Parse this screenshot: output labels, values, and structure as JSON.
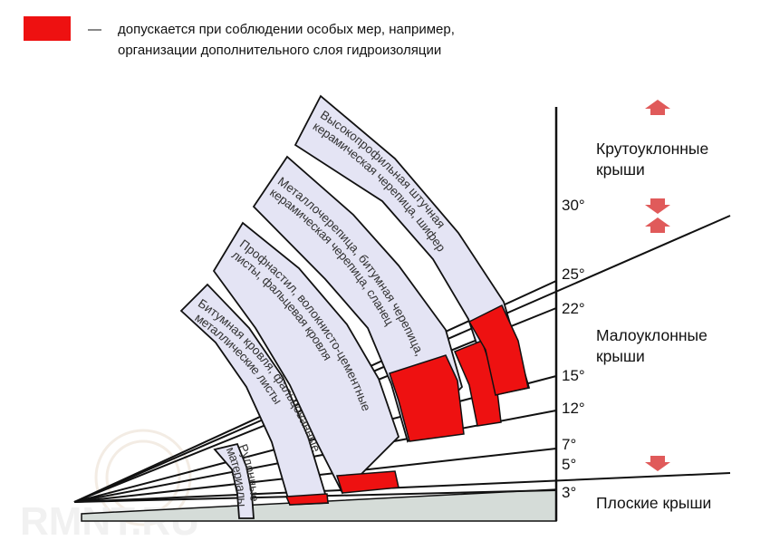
{
  "colors": {
    "band_fill": "#e4e4f4",
    "special_measures": "#ee1111",
    "arrow": "#e05a5a",
    "base": "#d5dcd8",
    "outline": "#111111"
  },
  "legend": {
    "dash": "—",
    "line1": "допускается при соблюдении особых мер, например,",
    "line2": "организации дополнительного слоя гидроизоляции"
  },
  "angles": [
    "30°",
    "25°",
    "22°",
    "15°",
    "12°",
    "7°",
    "5°",
    "3°"
  ],
  "zones": {
    "steep": [
      "Крутоуклонные",
      "крыши"
    ],
    "low": [
      "Малоуклонные",
      "крыши"
    ],
    "flat": "Плоские крыши"
  },
  "bands": [
    {
      "lines": [
        "Рулонные",
        "материалы"
      ]
    },
    {
      "lines": [
        "Битумная кровля, фальцованные",
        "металлические листы"
      ]
    },
    {
      "lines": [
        "Профнастил, волокнисто-цементные",
        "листы, фальцевая кровля"
      ]
    },
    {
      "lines": [
        "Металлочерепица, битумная черепица,",
        "керамическая черепица, сланец"
      ]
    },
    {
      "lines": [
        "Высокопрофильная штучная",
        "керамическая черепица, шифер"
      ]
    }
  ],
  "watermark": "RMNT.RU"
}
